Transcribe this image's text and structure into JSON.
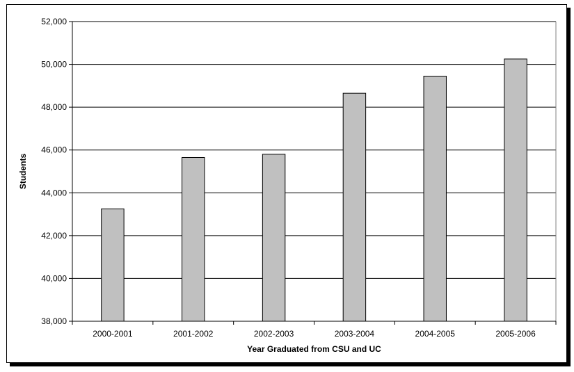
{
  "chart_data": {
    "type": "bar",
    "title": "",
    "xlabel": "Year Graduated from CSU and UC",
    "ylabel": "Students",
    "categories": [
      "2000-2001",
      "2001-2002",
      "2002-2003",
      "2003-2004",
      "2004-2005",
      "2005-2006"
    ],
    "values": [
      43250,
      45650,
      45800,
      48650,
      49450,
      50250
    ],
    "ylim": [
      38000,
      52000
    ],
    "yticks": [
      38000,
      40000,
      42000,
      44000,
      46000,
      48000,
      50000,
      52000
    ],
    "ytick_labels": [
      "38,000",
      "40,000",
      "42,000",
      "44,000",
      "46,000",
      "48,000",
      "50,000",
      "52,000"
    ],
    "grid": true,
    "legend": "none",
    "colors": {
      "bar_fill": "#c0c0c0",
      "bar_stroke": "#000000",
      "gridline": "#000000",
      "background": "#ffffff"
    }
  }
}
